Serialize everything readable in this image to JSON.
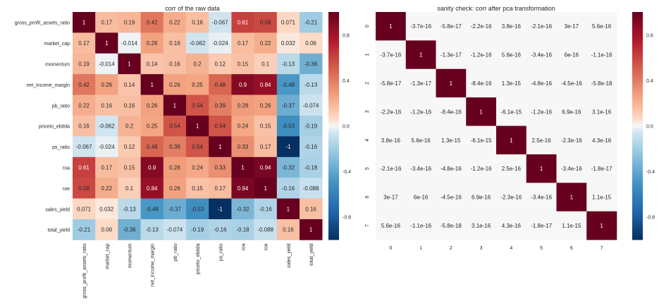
{
  "chart_data": [
    {
      "type": "heatmap",
      "title": "corr of the raw data",
      "xlabel": "",
      "ylabel": "",
      "labels": [
        "gross_profit_assets_ratio",
        "market_cap",
        "momentum",
        "net_income_margin",
        "pb_ratio",
        "priceto_ebitda",
        "ps_ratio",
        "roa",
        "roe",
        "sales_yield",
        "total_yield"
      ],
      "cell_labels": [
        [
          "1",
          "0.17",
          "0.19",
          "0.42",
          "0.22",
          "0.16",
          "-0.067",
          "0.61",
          "0.58",
          "0.071",
          "-0.21"
        ],
        [
          "0.17",
          "1",
          "-0.014",
          "0.26",
          "0.16",
          "-0.062",
          "-0.024",
          "0.17",
          "0.22",
          "0.032",
          "0.06"
        ],
        [
          "0.19",
          "-0.014",
          "1",
          "0.14",
          "0.16",
          "0.2",
          "0.12",
          "0.15",
          "0.1",
          "-0.13",
          "-0.36"
        ],
        [
          "0.42",
          "0.26",
          "0.14",
          "1",
          "0.26",
          "0.25",
          "0.48",
          "0.9",
          "0.84",
          "-0.48",
          "-0.13"
        ],
        [
          "0.22",
          "0.16",
          "0.16",
          "0.26",
          "1",
          "0.54",
          "0.39",
          "0.28",
          "0.26",
          "-0.37",
          "-0.074"
        ],
        [
          "0.16",
          "-0.062",
          "0.2",
          "0.25",
          "0.54",
          "1",
          "0.54",
          "0.24",
          "0.15",
          "-0.53",
          "-0.19"
        ],
        [
          "-0.067",
          "-0.024",
          "0.12",
          "0.48",
          "0.39",
          "0.54",
          "1",
          "0.33",
          "0.17",
          "-1",
          "-0.16"
        ],
        [
          "0.61",
          "0.17",
          "0.15",
          "0.9",
          "0.28",
          "0.24",
          "0.33",
          "1",
          "0.94",
          "-0.32",
          "-0.18"
        ],
        [
          "0.58",
          "0.22",
          "0.1",
          "0.84",
          "0.26",
          "0.15",
          "0.17",
          "0.94",
          "1",
          "-0.16",
          "-0.088"
        ],
        [
          "0.071",
          "0.032",
          "-0.13",
          "-0.48",
          "-0.37",
          "-0.53",
          "-1",
          "-0.32",
          "-0.16",
          "1",
          "0.16"
        ],
        [
          "-0.21",
          "0.06",
          "-0.36",
          "-0.13",
          "-0.074",
          "-0.19",
          "-0.16",
          "-0.18",
          "-0.088",
          "0.16",
          "1"
        ]
      ],
      "colorbar_ticks": [
        "0.8",
        "0.4",
        "0.0",
        "-0.4",
        "-0.8"
      ],
      "colorbar_tick_values": [
        0.8,
        0.4,
        0.0,
        -0.4,
        -0.8
      ],
      "vmin": -1,
      "vmax": 1,
      "cmap": "RdBu_r"
    },
    {
      "type": "heatmap",
      "title": "sanity check: corr after pca transformation",
      "xlabel": "",
      "ylabel": "",
      "labels": [
        "0",
        "1",
        "2",
        "3",
        "4",
        "5",
        "6",
        "7"
      ],
      "cell_labels": [
        [
          "1",
          "-3.7e-16",
          "-5.8e-17",
          "-2.2e-16",
          "3.8e-16",
          "-2.1e-16",
          "3e-17",
          "5.6e-16"
        ],
        [
          "-3.7e-16",
          "1",
          "-1.3e-17",
          "-1.2e-16",
          "5.6e-16",
          "-3.4e-16",
          "6e-16",
          "-1.1e-16"
        ],
        [
          "-5.8e-17",
          "-1.3e-17",
          "1",
          "-8.4e-16",
          "1.3e-15",
          "-4.8e-16",
          "-4.5e-16",
          "-5.8e-18"
        ],
        [
          "-2.2e-16",
          "-1.2e-16",
          "-8.4e-16",
          "1",
          "-6.1e-15",
          "-1.2e-16",
          "6.9e-16",
          "3.1e-16"
        ],
        [
          "3.8e-16",
          "5.6e-16",
          "1.3e-15",
          "-6.1e-15",
          "1",
          "2.5e-16",
          "-2.3e-16",
          "4.3e-16"
        ],
        [
          "-2.1e-16",
          "-3.4e-16",
          "-4.8e-16",
          "-1.2e-16",
          "2.5e-16",
          "1",
          "-3.4e-16",
          "-1.8e-17"
        ],
        [
          "3e-17",
          "6e-16",
          "-4.5e-16",
          "6.9e-16",
          "-2.3e-16",
          "-3.4e-16",
          "1",
          "1.1e-15"
        ],
        [
          "5.6e-16",
          "-1.1e-16",
          "-5.8e-18",
          "3.1e-16",
          "4.3e-16",
          "-1.8e-17",
          "1.1e-15",
          "1"
        ]
      ],
      "colorbar_ticks": [
        "0.8",
        "0.4",
        "0.0",
        "-0.4",
        "-0.8"
      ],
      "colorbar_tick_values": [
        0.8,
        0.4,
        0.0,
        -0.4,
        -0.8
      ],
      "vmin": -1,
      "vmax": 1,
      "cmap": "RdBu_r"
    }
  ]
}
